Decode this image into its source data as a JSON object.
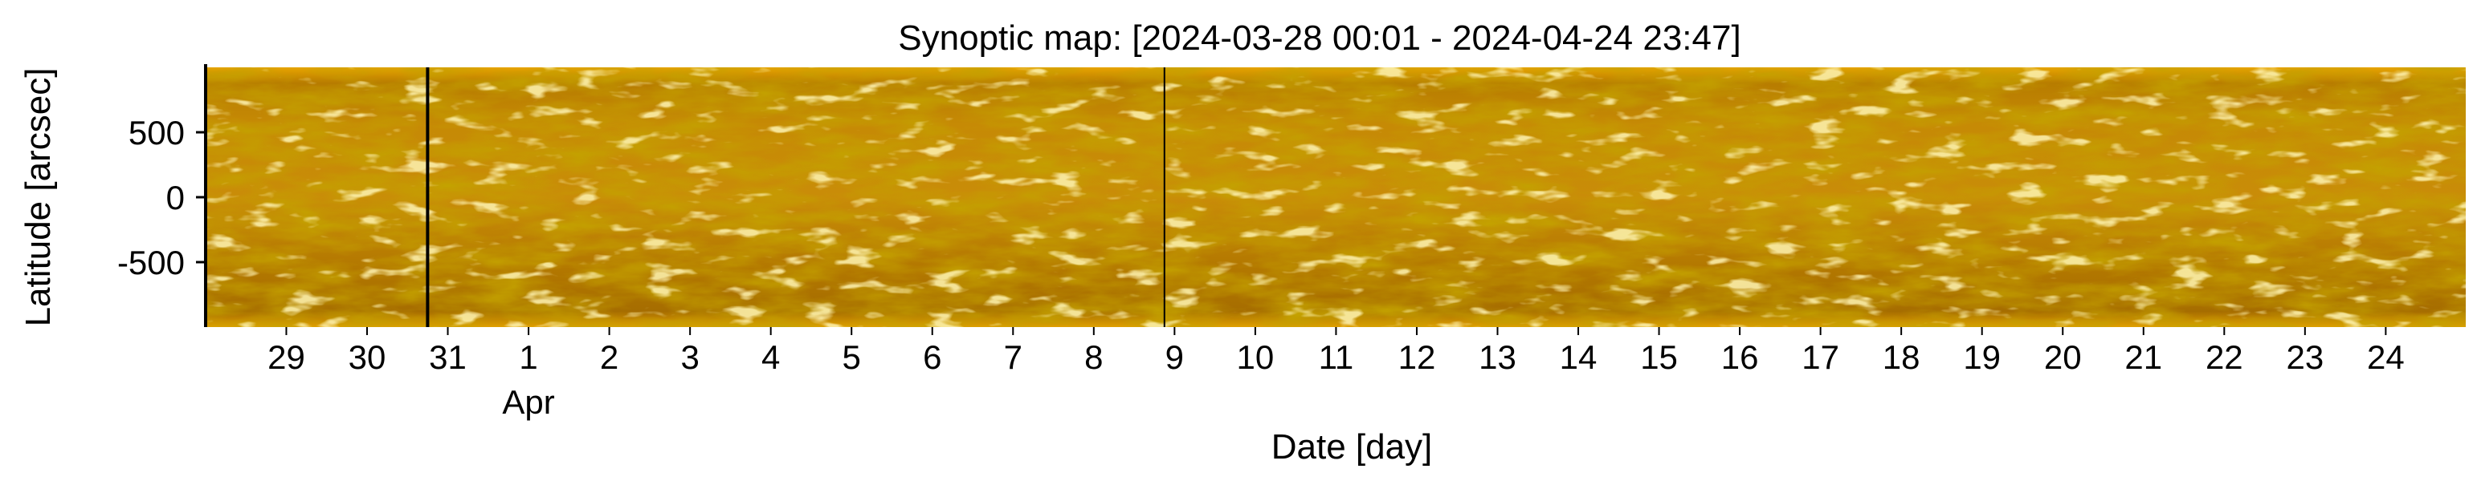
{
  "chart_data": {
    "type": "heatmap",
    "title": "Synoptic map: [2024-03-28 00:01 - 2024-04-24 23:47]",
    "xlabel": "Date [day]",
    "ylabel": "Latitude [arcsec]",
    "xlim": [
      "2024-03-28 00:01",
      "2024-04-24 23:47"
    ],
    "ylim": [
      -1000,
      1000
    ],
    "x_ticks": [
      {
        "date": "2024-03-29",
        "label": "29"
      },
      {
        "date": "2024-03-30",
        "label": "30"
      },
      {
        "date": "2024-03-31",
        "label": "31"
      },
      {
        "date": "2024-04-01",
        "label": "1"
      },
      {
        "date": "2024-04-02",
        "label": "2"
      },
      {
        "date": "2024-04-03",
        "label": "3"
      },
      {
        "date": "2024-04-04",
        "label": "4"
      },
      {
        "date": "2024-04-05",
        "label": "5"
      },
      {
        "date": "2024-04-06",
        "label": "6"
      },
      {
        "date": "2024-04-07",
        "label": "7"
      },
      {
        "date": "2024-04-08",
        "label": "8"
      },
      {
        "date": "2024-04-09",
        "label": "9"
      },
      {
        "date": "2024-04-10",
        "label": "10"
      },
      {
        "date": "2024-04-11",
        "label": "11"
      },
      {
        "date": "2024-04-12",
        "label": "12"
      },
      {
        "date": "2024-04-13",
        "label": "13"
      },
      {
        "date": "2024-04-14",
        "label": "14"
      },
      {
        "date": "2024-04-15",
        "label": "15"
      },
      {
        "date": "2024-04-16",
        "label": "16"
      },
      {
        "date": "2024-04-17",
        "label": "17"
      },
      {
        "date": "2024-04-18",
        "label": "18"
      },
      {
        "date": "2024-04-19",
        "label": "19"
      },
      {
        "date": "2024-04-20",
        "label": "20"
      },
      {
        "date": "2024-04-21",
        "label": "21"
      },
      {
        "date": "2024-04-22",
        "label": "22"
      },
      {
        "date": "2024-04-23",
        "label": "23"
      },
      {
        "date": "2024-04-24",
        "label": "24"
      }
    ],
    "x_secondary_labels": [
      {
        "date": "2024-04-01",
        "label": "Apr"
      }
    ],
    "y_ticks": [
      500,
      0,
      -500
    ],
    "y_tick_labels": [
      "500",
      "0",
      "-500"
    ],
    "vertical_lines": [
      "2024-03-30 18:00",
      "2024-04-08 21:00"
    ],
    "colormap": "solar EUV (dark brown to gold to pale yellow)",
    "colors": {
      "base": "#c88a00",
      "dark": "#8a5a00",
      "bright": "#ffe680",
      "line": "#000000"
    },
    "grid": false
  }
}
